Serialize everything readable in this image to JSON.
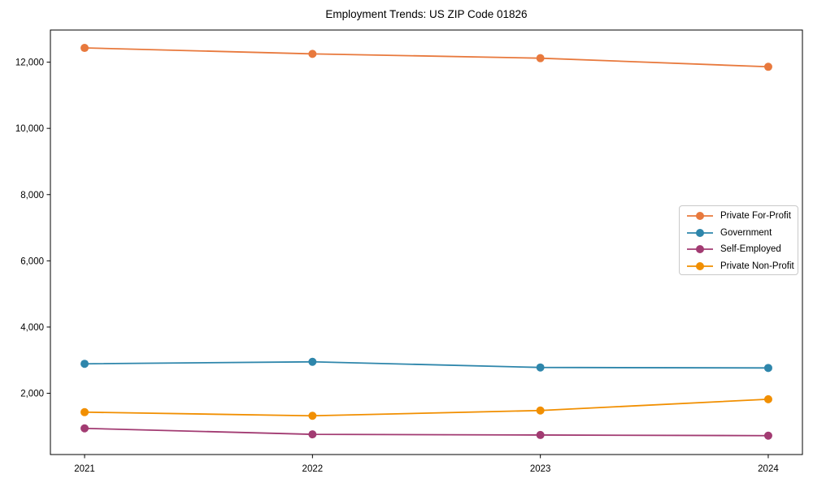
{
  "chart_data": {
    "type": "line",
    "title": "Employment Trends: US ZIP Code 01826",
    "x": [
      2021,
      2022,
      2023,
      2024
    ],
    "xtick_labels": [
      "2021",
      "2022",
      "2023",
      "2024"
    ],
    "series": [
      {
        "name": "Private For-Profit",
        "color": "#E8793D",
        "values": [
          12430,
          12250,
          12120,
          11860
        ]
      },
      {
        "name": "Government",
        "color": "#2E86AB",
        "values": [
          2890,
          2950,
          2780,
          2765
        ]
      },
      {
        "name": "Self-Employed",
        "color": "#A23B72",
        "values": [
          940,
          760,
          740,
          720
        ]
      },
      {
        "name": "Private Non-Profit",
        "color": "#F18F01",
        "values": [
          1430,
          1320,
          1480,
          1820
        ]
      }
    ],
    "yticks": [
      2000,
      4000,
      6000,
      8000,
      10000,
      12000
    ],
    "ytick_labels": [
      "2,000",
      "4,000",
      "6,000",
      "8,000",
      "10,000",
      "12,000"
    ],
    "xlim": [
      2020.85,
      2024.15
    ],
    "ylim": [
      150,
      12970
    ],
    "xlabel": "",
    "ylabel": "",
    "grid": false,
    "legend_position": "center right",
    "marker": "circle",
    "axis_color": "#000000",
    "tick_label_color": "#000000",
    "background_color": "#ffffff"
  }
}
